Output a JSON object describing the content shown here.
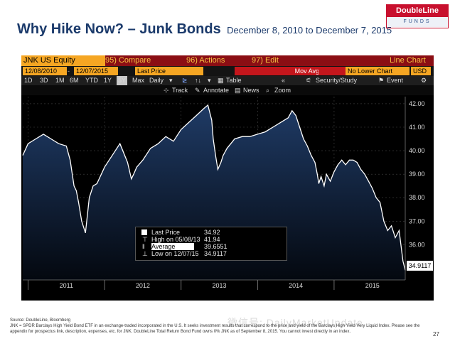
{
  "slide": {
    "title": "Why Hike Now? – Junk Bonds",
    "subtitle": "December 8, 2010 to December 7, 2015",
    "logo_top": "DoubleLine",
    "logo_bottom": "FUNDS",
    "page_number": "27",
    "watermark": "微信号: DailyMarketUpdate",
    "source": "Source: DoubleLine, Bloomberg",
    "disclaimer": "JNK = SPDR Barclays High Yield Bond ETF in an exchange-traded incorporated in the U.S. It seeks investment results that correspond to the price and yield of the Barclays High Yield Very Liquid Index. Please see the appendix for prospectus link, description, expenses, etc. for JNK. DoubleLine Total Return Bond Fund owns 0% JNK as of September 8, 2015. You cannot invest directly in an index."
  },
  "terminal": {
    "ticker": "JNK US Equity",
    "menu_compare": "95) Compare",
    "menu_actions": "96) Actions",
    "menu_edit": "97) Edit",
    "menu_line_chart": "Line Chart",
    "start_date": "12/08/2010",
    "end_date": "12/07/2015",
    "field": "Last Price",
    "mov_avg": "Mov Avg",
    "compare_mode": "No Lower Chart",
    "currency": "USD",
    "periods": [
      "1D",
      "3D",
      "1M",
      "6M",
      "YTD",
      "1Y",
      "5Y",
      "Max"
    ],
    "selected_period": "5Y",
    "frequency": "Daily",
    "table_label": "Table",
    "security_study": "Security/Study",
    "event": "Event",
    "track": "Track",
    "annotate": "Annotate",
    "news": "News",
    "zoom": "Zoom",
    "legend": {
      "last_price_label": "Last Price",
      "last_price_value": "34.92",
      "high_label": "High on 05/08/13",
      "high_value": "41.94",
      "average_label": "Average",
      "average_value": "39.6551",
      "low_label": "Low on 12/07/15",
      "low_value": "34.9117"
    },
    "last_price_tag": "34.9117"
  },
  "colors": {
    "terminal_bg": "#000000",
    "menu_bar": "#8b0e14",
    "bloomberg_orange": "#f5a623",
    "line": "#ffffff",
    "fill_top": "#1f3b66",
    "title_navy": "#1b3a6b",
    "brand_red": "#c8102e"
  },
  "chart_data": {
    "type": "area",
    "title": "",
    "xlabel": "",
    "ylabel": "",
    "x_labels": [
      "2011",
      "2012",
      "2013",
      "2014",
      "2015"
    ],
    "y_ticks": [
      36.0,
      37.0,
      38.0,
      39.0,
      40.0,
      41.0,
      42.0
    ],
    "ylim": [
      34.5,
      42.3
    ],
    "xlim": [
      2010.93,
      2015.93
    ],
    "y_axis_position": "right",
    "grid": true,
    "series": [
      {
        "x": [
          2010.93,
          2011.0,
          2011.1,
          2011.2,
          2011.3,
          2011.4,
          2011.5,
          2011.55,
          2011.6,
          2011.63,
          2011.66,
          2011.7,
          2011.75,
          2011.8,
          2011.85,
          2011.9,
          2012.0,
          2012.1,
          2012.2,
          2012.3,
          2012.35,
          2012.38,
          2012.42,
          2012.5,
          2012.6,
          2012.7,
          2012.8,
          2012.9,
          2013.0,
          2013.1,
          2013.2,
          2013.3,
          2013.35,
          2013.4,
          2013.42,
          2013.45,
          2013.48,
          2013.52,
          2013.55,
          2013.6,
          2013.7,
          2013.8,
          2013.9,
          2014.0,
          2014.1,
          2014.2,
          2014.3,
          2014.4,
          2014.45,
          2014.5,
          2014.55,
          2014.6,
          2014.65,
          2014.7,
          2014.75,
          2014.78,
          2014.8,
          2014.83,
          2014.87,
          2014.9,
          2014.95,
          2015.0,
          2015.05,
          2015.1,
          2015.15,
          2015.2,
          2015.25,
          2015.3,
          2015.35,
          2015.4,
          2015.45,
          2015.5,
          2015.55,
          2015.6,
          2015.65,
          2015.7,
          2015.75,
          2015.8,
          2015.85,
          2015.9,
          2015.93
        ],
        "y": [
          39.8,
          40.3,
          40.5,
          40.7,
          40.5,
          40.3,
          40.2,
          39.6,
          38.5,
          38.3,
          37.8,
          37.0,
          36.5,
          38.0,
          38.5,
          38.6,
          39.3,
          39.8,
          40.3,
          39.5,
          38.8,
          39.0,
          39.3,
          39.6,
          40.1,
          40.3,
          40.6,
          40.4,
          40.9,
          41.2,
          41.5,
          41.8,
          41.94,
          41.3,
          40.5,
          39.8,
          39.2,
          39.5,
          39.8,
          40.1,
          40.5,
          40.6,
          40.6,
          40.7,
          40.8,
          41.0,
          41.2,
          41.4,
          41.7,
          41.5,
          41.0,
          40.5,
          40.2,
          39.8,
          39.5,
          39.0,
          38.6,
          38.9,
          38.5,
          39.0,
          38.7,
          39.1,
          39.4,
          39.6,
          39.4,
          39.6,
          39.6,
          39.5,
          39.2,
          39.0,
          38.7,
          38.4,
          38.0,
          37.8,
          37.0,
          36.6,
          36.8,
          36.3,
          36.6,
          35.3,
          34.9117
        ]
      }
    ]
  }
}
